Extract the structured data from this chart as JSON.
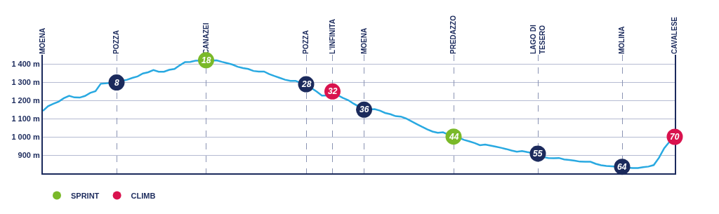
{
  "chart_data": {
    "type": "line",
    "categories": [
      "MOENA",
      null,
      null,
      null,
      null,
      null,
      null,
      null,
      null,
      null,
      null,
      null,
      null,
      null,
      "POZZA",
      null,
      null,
      null,
      null,
      null,
      null,
      null,
      null,
      null,
      null,
      null,
      null,
      null,
      null,
      null,
      null,
      "CANAZEI",
      null,
      null,
      null,
      null,
      null,
      null,
      null,
      null,
      null,
      null,
      null,
      null,
      null,
      null,
      null,
      null,
      null,
      null,
      "POZZA",
      null,
      null,
      null,
      null,
      "L'INFINITA",
      null,
      null,
      null,
      null,
      null,
      "MOENA",
      null,
      null,
      null,
      null,
      null,
      null,
      null,
      null,
      null,
      null,
      null,
      null,
      null,
      null,
      null,
      null,
      "PREDAZZO",
      null,
      null,
      null,
      null,
      null,
      null,
      null,
      null,
      null,
      null,
      null,
      null,
      null,
      null,
      null,
      "LAGO DI\nTESERO",
      null,
      null,
      null,
      null,
      null,
      null,
      null,
      null,
      null,
      null,
      null,
      null,
      null,
      null,
      null,
      "MOLINA",
      null,
      null,
      null,
      null,
      null,
      null,
      null,
      null,
      null,
      "CAVALESE"
    ],
    "ylim": [
      800,
      1450
    ],
    "yticks": [
      {
        "value": 900,
        "label": "900 m"
      },
      {
        "value": 1000,
        "label": "1 000 m"
      },
      {
        "value": 1100,
        "label": "1 100 m"
      },
      {
        "value": 1200,
        "label": "1 200 m"
      },
      {
        "value": 1300,
        "label": "1 300 m"
      },
      {
        "value": 1400,
        "label": "1 400 m"
      }
    ],
    "grid": true,
    "legend": "bottom left",
    "series": [
      {
        "color": "#29a9e1",
        "values": [
          1142,
          1168,
          1181,
          1193,
          1212,
          1225,
          1216,
          1215,
          1224,
          1241,
          1250,
          1291,
          null,
          null,
          1298,
          1307,
          1313,
          1323,
          1331,
          1347,
          1354,
          1366,
          1357,
          1357,
          1367,
          1372,
          1392,
          1410,
          1411,
          1417,
          null,
          null,
          null,
          1419,
          1411,
          1404,
          1396,
          1384,
          1377,
          1372,
          1361,
          1358,
          1358,
          1344,
          1333,
          1323,
          1313,
          1307,
          1307,
          1295,
          1284,
          1267,
          1248,
          1226,
          null,
          null,
          1228,
          1213,
          1201,
          1182,
          1166,
          1153,
          1150,
          1152,
          1144,
          1131,
          1124,
          1113,
          1111,
          1100,
          1085,
          1070,
          1055,
          1041,
          1029,
          1022,
          1025,
          1012,
          null,
          995,
          983,
          975,
          966,
          954,
          958,
          952,
          946,
          940,
          933,
          925,
          918,
          922,
          916,
          911,
          904,
          889,
          884,
          883,
          884,
          876,
          873,
          869,
          864,
          863,
          863,
          852,
          844,
          840,
          null,
          null,
          835,
          831,
          829,
          829,
          834,
          837,
          845,
          885,
          938,
          973,
          null
        ]
      },
      {
        "type": "scatter",
        "name": "SPRINT",
        "color": "#7ab929",
        "marker": "circle",
        "values": [
          null,
          null,
          null,
          null,
          null,
          null,
          null,
          null,
          null,
          null,
          null,
          null,
          null,
          null,
          null,
          null,
          null,
          null,
          null,
          null,
          null,
          null,
          null,
          null,
          null,
          null,
          null,
          null,
          null,
          null,
          null,
          1420,
          null,
          null,
          null,
          null,
          null,
          null,
          null,
          null,
          null,
          null,
          null,
          null,
          null,
          null,
          null,
          null,
          null,
          null,
          null,
          null,
          null,
          null,
          null,
          null,
          null,
          null,
          null,
          null,
          null,
          null,
          null,
          null,
          null,
          null,
          null,
          null,
          null,
          null,
          null,
          null,
          null,
          null,
          null,
          null,
          null,
          null,
          1001,
          null,
          null,
          null,
          null,
          null,
          null,
          null,
          null,
          null,
          null,
          null,
          null,
          null,
          null,
          null,
          null,
          null,
          null,
          null,
          null,
          null,
          null,
          null,
          null,
          null,
          null,
          null,
          null,
          null,
          null,
          null,
          null,
          null,
          null,
          null,
          null,
          null,
          null,
          null,
          null,
          null,
          null
        ]
      },
      {
        "type": "scatter",
        "name": "CLIMB",
        "color": "#d9124e",
        "marker": "circle",
        "values": [
          null,
          null,
          null,
          null,
          null,
          null,
          null,
          null,
          null,
          null,
          null,
          null,
          null,
          null,
          null,
          null,
          null,
          null,
          null,
          null,
          null,
          null,
          null,
          null,
          null,
          null,
          null,
          null,
          null,
          null,
          null,
          null,
          null,
          null,
          null,
          null,
          null,
          null,
          null,
          null,
          null,
          null,
          null,
          null,
          null,
          null,
          null,
          null,
          null,
          null,
          null,
          null,
          null,
          null,
          null,
          1249,
          null,
          null,
          null,
          null,
          null,
          null,
          null,
          null,
          null,
          null,
          null,
          null,
          null,
          null,
          null,
          null,
          null,
          null,
          null,
          null,
          null,
          null,
          null,
          null,
          null,
          null,
          null,
          null,
          null,
          null,
          null,
          null,
          null,
          null,
          null,
          null,
          null,
          null,
          null,
          null,
          null,
          null,
          null,
          null,
          null,
          null,
          null,
          null,
          null,
          null,
          null,
          null,
          null,
          null,
          null,
          null,
          null,
          null,
          null,
          null,
          null,
          null,
          null,
          null,
          1000
        ]
      },
      {
        "type": "scatter",
        "color": "#1b2a5c",
        "marker": "circle",
        "values": [
          null,
          null,
          null,
          null,
          null,
          null,
          null,
          null,
          null,
          null,
          null,
          null,
          null,
          null,
          1298,
          null,
          null,
          null,
          null,
          null,
          null,
          null,
          null,
          null,
          null,
          null,
          null,
          null,
          null,
          null,
          null,
          null,
          null,
          null,
          null,
          null,
          null,
          null,
          null,
          null,
          null,
          null,
          null,
          null,
          null,
          null,
          null,
          null,
          null,
          null,
          1288,
          null,
          null,
          null,
          null,
          null,
          null,
          null,
          null,
          null,
          null,
          1149,
          null,
          null,
          null,
          null,
          null,
          null,
          null,
          null,
          null,
          null,
          null,
          null,
          null,
          null,
          null,
          null,
          null,
          null,
          null,
          null,
          null,
          null,
          null,
          null,
          null,
          null,
          null,
          null,
          null,
          null,
          null,
          null,
          908,
          null,
          null,
          null,
          null,
          null,
          null,
          null,
          null,
          null,
          null,
          null,
          null,
          null,
          null,
          null,
          836,
          null,
          null,
          null,
          null,
          null,
          null,
          null,
          null,
          null,
          null
        ]
      }
    ],
    "annotations": [
      {
        "text": "8",
        "x": "POZZA",
        "y": 1298
      },
      {
        "text": "18",
        "x": "CANAZEI",
        "y": 1420
      },
      {
        "text": "28",
        "y": 1288
      },
      {
        "text": "32",
        "x": "L'INFINITA",
        "y": 1249
      },
      {
        "text": "36",
        "y": 1149
      },
      {
        "text": "44",
        "x": "PREDAZZO",
        "y": 1001
      },
      {
        "text": "55",
        "x": "LAGO DI\nTESERO",
        "y": 908
      },
      {
        "text": "64",
        "x": "MOLINA",
        "y": 836
      },
      {
        "text": "70",
        "x": "CAVALESE",
        "y": 1000
      }
    ]
  }
}
